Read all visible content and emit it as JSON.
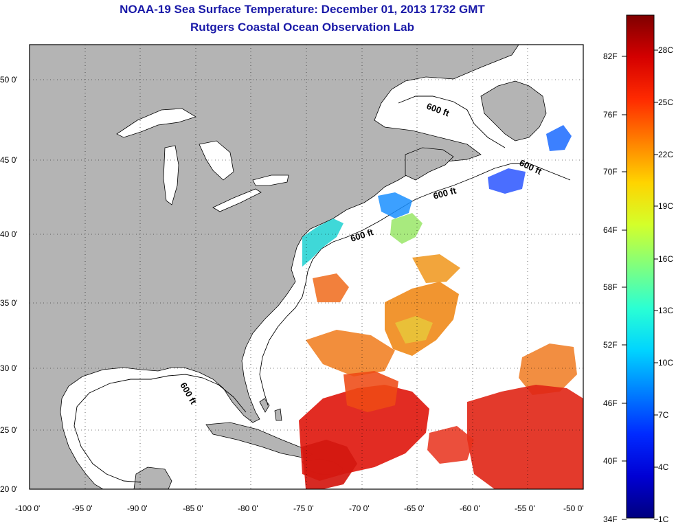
{
  "title": {
    "line1": "NOAA-19 Sea Surface Temperature:  December 01, 2013 1732 GMT",
    "line2": "Rutgers Coastal Ocean Observation Lab"
  },
  "lat_ticks": [
    "50 0'",
    "45 0'",
    "40 0'",
    "35 0'",
    "30 0'",
    "25 0'",
    "20 0'"
  ],
  "lon_ticks": [
    "-100 0'",
    "-95 0'",
    "-90 0'",
    "-85 0'",
    "-80 0'",
    "-75 0'",
    "-70 0'",
    "-65 0'",
    "-60 0'",
    "-55 0'",
    "-50 0'"
  ],
  "isobath_label": "600 ft",
  "colorbar": {
    "fahrenheit": [
      "82F",
      "76F",
      "70F",
      "64F",
      "58F",
      "52F",
      "46F",
      "40F",
      "34F"
    ],
    "celsius": [
      "28C",
      "25C",
      "22C",
      "19C",
      "16C",
      "13C",
      "10C",
      "7C",
      "4C",
      "1C"
    ],
    "colors": [
      "#7f0000",
      "#d40000",
      "#ff2a00",
      "#ff7f00",
      "#ffd400",
      "#d4ff2a",
      "#7fff7f",
      "#2affd4",
      "#00d4ff",
      "#007fff",
      "#002aff",
      "#0000d4",
      "#00007f"
    ]
  },
  "colors": {
    "land": "#b4b4b4",
    "ocean": "#ffffff",
    "title": "#1a1aa8"
  }
}
